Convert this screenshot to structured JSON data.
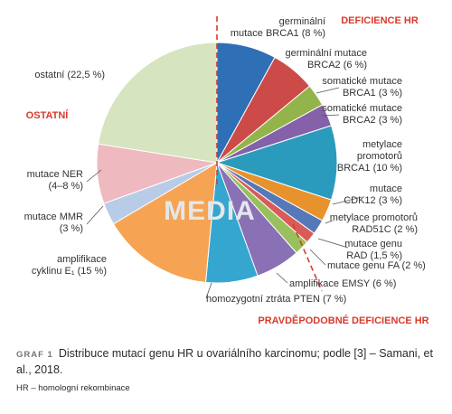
{
  "chart_data": {
    "type": "pie",
    "slices": [
      {
        "lines": [
          "germinální",
          "mutace BRCA1 (8 %)"
        ],
        "value": 8,
        "color": "#2f6fb5"
      },
      {
        "lines": [
          "germinální mutace",
          "BRCA2 (6 %)"
        ],
        "value": 6,
        "color": "#cc4a48"
      },
      {
        "lines": [
          "somatické mutace",
          "BRCA1 (3 %)"
        ],
        "value": 3,
        "color": "#93b44a"
      },
      {
        "lines": [
          "somatické mutace",
          "BRCA2 (3 %)"
        ],
        "value": 3,
        "color": "#8461a9"
      },
      {
        "lines": [
          "metylace",
          "promotorů",
          "BRCA1 (10 %)"
        ],
        "value": 10,
        "color": "#2b9bbd"
      },
      {
        "lines": [
          "mutace",
          "CDK12 (3 %)"
        ],
        "value": 3,
        "color": "#e8922e"
      },
      {
        "lines": [
          "metylace promotorů",
          "RAD51C (2 %)"
        ],
        "value": 2,
        "color": "#5578b8"
      },
      {
        "lines": [
          "mutace genu",
          "RAD (1,5 %)"
        ],
        "value": 1.5,
        "color": "#d95b58"
      },
      {
        "lines": [
          "mutace genu FA (2 %)"
        ],
        "value": 2,
        "color": "#98c05c"
      },
      {
        "lines": [
          "amplifikace EMSY (6 %)"
        ],
        "value": 6,
        "color": "#8a70b4"
      },
      {
        "lines": [
          "homozygotní ztráta PTEN (7 %)"
        ],
        "value": 7,
        "color": "#35a6cf"
      },
      {
        "lines": [
          "amplifikace",
          "cyklinu E₁ (15 %)"
        ],
        "value": 15,
        "color": "#f6a453"
      },
      {
        "lines": [
          "mutace MMR",
          "(3 %)"
        ],
        "value": 3,
        "color": "#b8cce8"
      },
      {
        "lines": [
          "mutace NER",
          "(4–8 %)"
        ],
        "value": 8,
        "color": "#eeb9bf"
      },
      {
        "lines": [
          "ostatní (22,5 %)"
        ],
        "value": 22.5,
        "color": "#d6e4bf"
      }
    ],
    "groups": [
      "DEFICIENCE HR",
      "OSTATNÍ",
      "PRAVDĚPODOBNÉ DEFICIENCE HR"
    ],
    "watermark": "MEDIA"
  },
  "caption": {
    "graf": "GRAF 1",
    "text": "Distribuce mutací genu HR u ovariálního karcinomu; podle [3] – Samani, et al., 2018.",
    "note": "HR – homologní rekombinace"
  }
}
